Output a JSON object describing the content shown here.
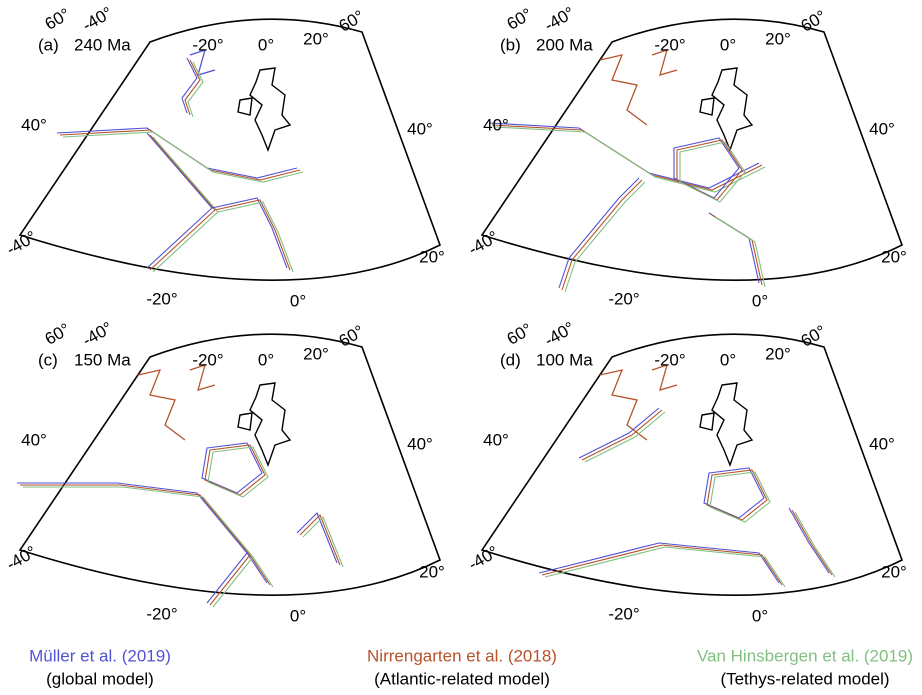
{
  "panels": [
    {
      "label": "(a)",
      "age": "240 Ma",
      "graticule": [
        "60°",
        "-40°",
        "-20°",
        "0°",
        "20°",
        "60°",
        "40°",
        "40°",
        "-40°",
        "20°",
        "-20°",
        "0°"
      ]
    },
    {
      "label": "(b)",
      "age": "200 Ma",
      "graticule": [
        "60°",
        "-40°",
        "-20°",
        "0°",
        "20°",
        "60°",
        "40°",
        "40°",
        "-40°",
        "20°",
        "-20°",
        "0°"
      ]
    },
    {
      "label": "(c)",
      "age": "150 Ma",
      "graticule": [
        "60°",
        "-40°",
        "-20°",
        "0°",
        "20°",
        "60°",
        "40°",
        "40°",
        "-40°",
        "20°",
        "-20°",
        "0°"
      ]
    },
    {
      "label": "(d)",
      "age": "100 Ma",
      "graticule": [
        "60°",
        "-40°",
        "-20°",
        "0°",
        "20°",
        "60°",
        "40°",
        "40°",
        "-40°",
        "20°",
        "-20°",
        "0°"
      ]
    }
  ],
  "legend": [
    {
      "name": "Müller et al. (2019)",
      "note": "(global model)",
      "color": "#5252d6"
    },
    {
      "name": "Nirrengarten et al. (2018)",
      "note": "(Atlantic-related model)",
      "color": "#b5532a"
    },
    {
      "name": "Van Hinsbergen et al. (2019)",
      "note": "(Tethys-related model)",
      "color": "#82bf82"
    }
  ]
}
